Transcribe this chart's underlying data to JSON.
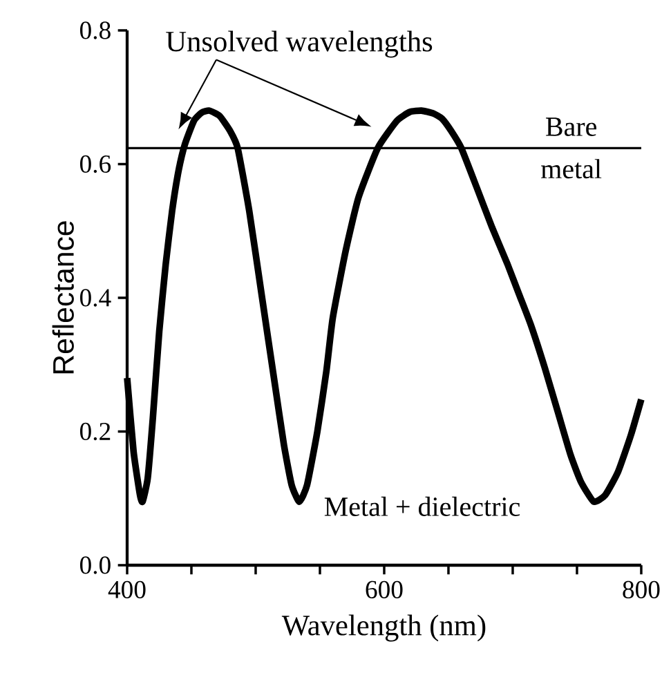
{
  "chart_data": {
    "type": "line",
    "xlabel": "Wavelength (nm)",
    "ylabel": "Reflectance",
    "annotations": [
      "Unsolved wavelengths"
    ],
    "xlim": [
      400,
      800
    ],
    "ylim": [
      0,
      0.8
    ],
    "xticks": [
      400,
      {
        "value": 450,
        "label": null
      },
      {
        "value": 500,
        "label": null
      },
      {
        "value": 550,
        "label": null
      },
      600,
      {
        "value": 650,
        "label": null
      },
      {
        "value": 700,
        "label": null
      },
      {
        "value": 750,
        "label": null
      },
      800
    ],
    "yticks": [
      {
        "value": 0,
        "label": "0.0"
      },
      0.2,
      0.4,
      0.6,
      0.8
    ],
    "grid": false,
    "marker": "none",
    "line_style": "solid",
    "ref_lines": [
      {
        "axis": "y",
        "value": 0.624,
        "label": "Bare metal",
        "color": "#000000"
      }
    ],
    "series": [
      {
        "name": "Metal + dielectric",
        "color": "#000000",
        "x": [
          400,
          405,
          410,
          412,
          416,
          420,
          425,
          430,
          435,
          440,
          445,
          452,
          458,
          464,
          472,
          480,
          486,
          495,
          505,
          515,
          522,
          528,
          534,
          540,
          548,
          555,
          560,
          570,
          580,
          595,
          610,
          620,
          629,
          638,
          645,
          652,
          660,
          672,
          684,
          696,
          705,
          714,
          725,
          735,
          745,
          753,
          763,
          772,
          782,
          792,
          800
        ],
        "values": [
          0.28,
          0.17,
          0.105,
          0.095,
          0.13,
          0.22,
          0.35,
          0.45,
          0.53,
          0.59,
          0.63,
          0.665,
          0.677,
          0.68,
          0.672,
          0.65,
          0.624,
          0.53,
          0.4,
          0.27,
          0.18,
          0.12,
          0.095,
          0.12,
          0.2,
          0.29,
          0.37,
          0.47,
          0.55,
          0.624,
          0.665,
          0.678,
          0.68,
          0.676,
          0.668,
          0.65,
          0.624,
          0.565,
          0.505,
          0.45,
          0.405,
          0.36,
          0.295,
          0.23,
          0.165,
          0.125,
          0.095,
          0.105,
          0.14,
          0.195,
          0.248
        ]
      }
    ]
  }
}
